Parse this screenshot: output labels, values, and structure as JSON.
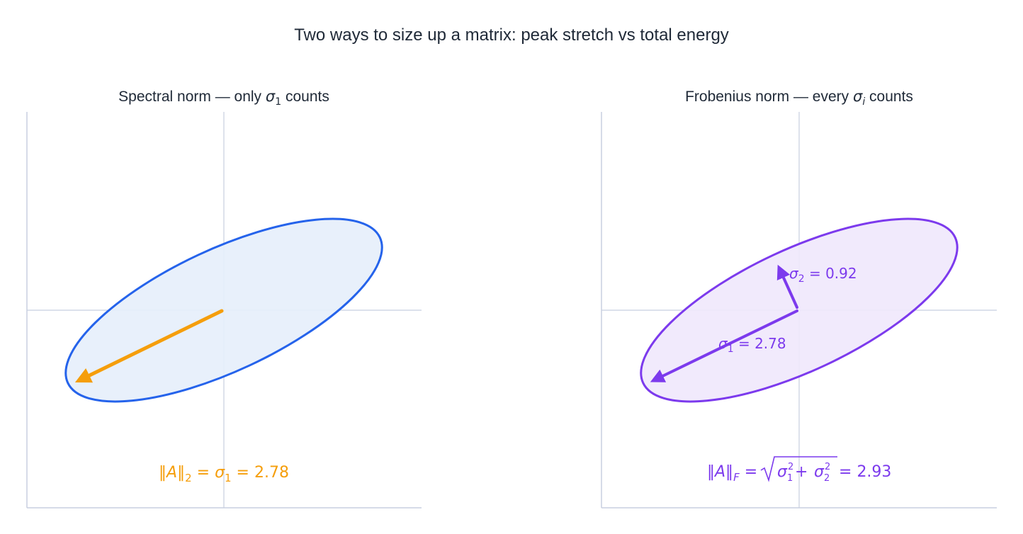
{
  "figure": {
    "title": "Two ways to size up a matrix: peak stretch vs total energy"
  },
  "colors": {
    "text": "#1f2937",
    "axis": "#c8cfe0",
    "spectral_stroke": "#2563eb",
    "spectral_fill": "#e6eefb",
    "spectral_vector": "#f59e0b",
    "frobenius_stroke": "#7c3aed",
    "frobenius_fill": "#f0e8fc"
  },
  "panels": {
    "spectral": {
      "title_prefix": "Spectral norm — only ",
      "title_symbol": "σ",
      "title_sub": "1",
      "title_suffix": " counts",
      "formula": {
        "norm": "‖A‖",
        "norm_sub": "2",
        "eq1": " = ",
        "sigma": "σ",
        "sigma_sub": "1",
        "eq2": " = ",
        "value": "2.78"
      }
    },
    "frobenius": {
      "title_prefix": "Frobenius norm — every ",
      "title_symbol": "σ",
      "title_sub": "i",
      "title_suffix": " counts",
      "sigma1_label": {
        "symbol": "σ",
        "sub": "1",
        "text": " = 2.78"
      },
      "sigma2_label": {
        "symbol": "σ",
        "sub": "2",
        "text": " = 0.92"
      },
      "formula": {
        "norm": "‖A‖",
        "norm_sub": "F",
        "eq1": " = ",
        "s1": "σ",
        "s1_sub": "1",
        "s1_sup": "2",
        "plus": " + ",
        "s2": "σ",
        "s2_sub": "2",
        "s2_sup": "2",
        "eq2": " = ",
        "value": "2.93"
      }
    }
  },
  "chart_data": {
    "type": "diagram",
    "singular_values": [
      2.78,
      0.92
    ],
    "spectral_norm": 2.78,
    "frobenius_norm": 2.93,
    "ellipse_rotation_deg": 25
  }
}
